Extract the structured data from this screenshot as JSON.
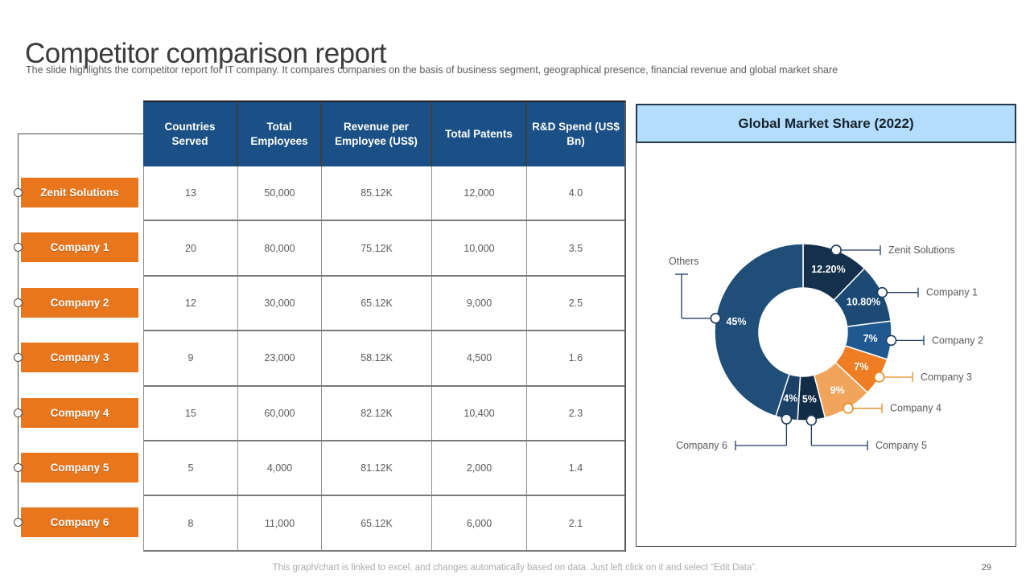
{
  "slide": {
    "title": "Competitor comparison report",
    "subtitle": "The slide highlights the competitor report for IT company. It compares companies on the basis of business segment, geographical presence, financial revenue and global market share",
    "footer": "This graph/chart is linked to excel, and changes automatically based on data. Just left click on it and select “Edit Data”.",
    "page_number": "29"
  },
  "table": {
    "row_labels": [
      "Zenit Solutions",
      "Company 1",
      "Company 2",
      "Company 3",
      "Company 4",
      "Company 5",
      "Company 6"
    ],
    "columns": [
      "Countries Served",
      "Total Employees",
      "Revenue per Employee (US$)",
      "Total Patents",
      "R&D Spend (US$ Bn)"
    ],
    "rows": [
      [
        "13",
        "50,000",
        "85.12K",
        "12,000",
        "4.0"
      ],
      [
        "20",
        "80,000",
        "75.12K",
        "10,000",
        "3.5"
      ],
      [
        "12",
        "30,000",
        "65.12K",
        "9,000",
        "2.5"
      ],
      [
        "9",
        "23,000",
        "58.12K",
        "4,500",
        "1.6"
      ],
      [
        "15",
        "60,000",
        "82.12K",
        "10,400",
        "2.3"
      ],
      [
        "5",
        "4,000",
        "81.12K",
        "2,000",
        "1.4"
      ],
      [
        "8",
        "11,000",
        "65.12K",
        "6,000",
        "2.1"
      ]
    ]
  },
  "chart_data": {
    "type": "pie",
    "donut": true,
    "title": "Global Market Share (2022)",
    "labels": [
      "Zenit Solutions",
      "Company 1",
      "Company 2",
      "Company 3",
      "Company 4",
      "Company 5",
      "Company 6",
      "Others"
    ],
    "values": [
      12.2,
      10.8,
      7,
      7,
      9,
      5,
      4,
      45
    ],
    "display_values": [
      "12.20%",
      "10.80%",
      "7%",
      "7%",
      "9%",
      "5%",
      "4%",
      "45%"
    ],
    "colors": [
      "#14304C",
      "#1C4A74",
      "#20598F",
      "#EE7D23",
      "#F1A45C",
      "#122C45",
      "#1B4166",
      "#1F4E79"
    ],
    "legend_position": "callouts"
  },
  "colors": {
    "accent_orange": "#E8761C",
    "header_blue": "#1A5085",
    "title_bar_blue": "#B3DDFA",
    "navy_line": "#1F3C61",
    "orange_line": "#E8891E"
  }
}
